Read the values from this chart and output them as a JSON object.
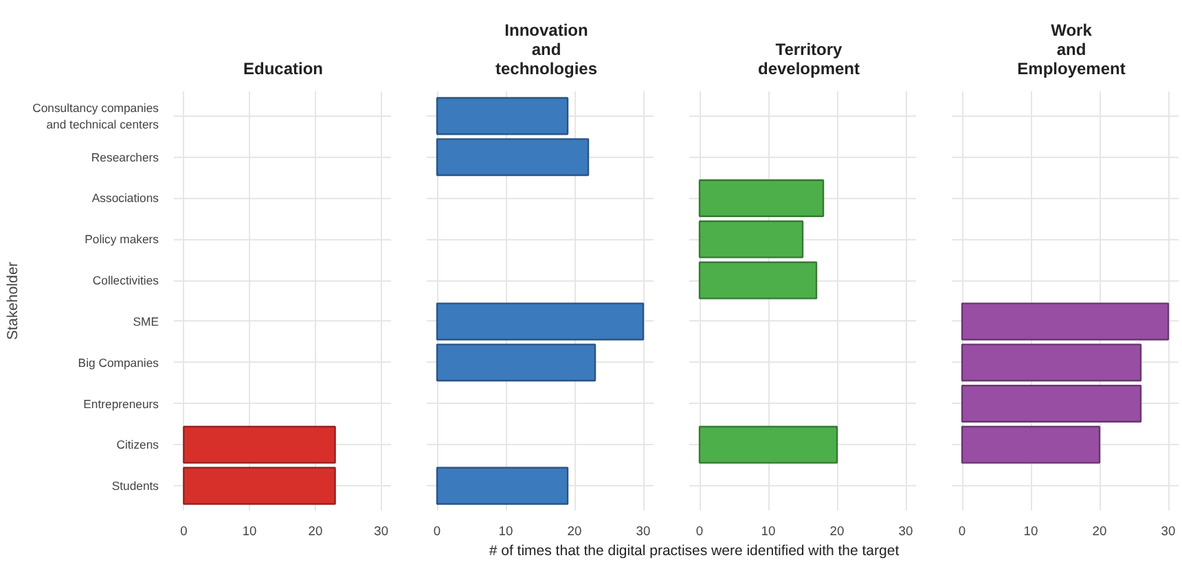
{
  "chart_data": [
    {
      "type": "bar",
      "orientation": "horizontal",
      "title": "Education",
      "ylabel": "Stakeholder",
      "categories": [
        "Consultancy companies\nand technical centers",
        "Researchers",
        "Associations",
        "Policy makers",
        "Collectivities",
        "SME",
        "Big Companies",
        "Entrepreneurs",
        "Citizens",
        "Students"
      ],
      "values": [
        null,
        null,
        null,
        null,
        null,
        null,
        null,
        null,
        23,
        23
      ],
      "color": "#d7302b",
      "xlim": [
        -1.5,
        31.5
      ],
      "xticks": [
        0,
        10,
        20,
        30
      ],
      "grid": true
    },
    {
      "type": "bar",
      "orientation": "horizontal",
      "title": "Innovation\nand\ntechnologies",
      "xlabel": "# of times that the digital practises were identified with the target",
      "values": [
        19,
        22,
        null,
        null,
        null,
        30,
        23,
        null,
        null,
        19
      ],
      "color": "#3b7abd",
      "xlim": [
        -1.5,
        31.5
      ],
      "xticks": [
        0,
        10,
        20,
        30
      ],
      "grid": true,
      "tick_labels": "x"
    },
    {
      "type": "bar",
      "orientation": "horizontal",
      "title": "Territory\ndevelopment",
      "values": [
        null,
        null,
        18,
        15,
        17,
        null,
        null,
        null,
        20,
        null
      ],
      "color": "#4daf4a",
      "xlim": [
        -1.5,
        31.5
      ],
      "xticks": [
        0,
        10,
        20,
        30
      ],
      "grid": true,
      "tick_labels": "x"
    },
    {
      "type": "bar",
      "orientation": "horizontal",
      "title": "Work\nand\nEmployement",
      "values": [
        null,
        null,
        null,
        null,
        null,
        30,
        26,
        26,
        20,
        null
      ],
      "color": "#984ea3",
      "xlim": [
        -1.5,
        31.5
      ],
      "xticks": [
        0,
        10,
        20,
        30
      ],
      "grid": true,
      "tick_labels": "x"
    }
  ]
}
